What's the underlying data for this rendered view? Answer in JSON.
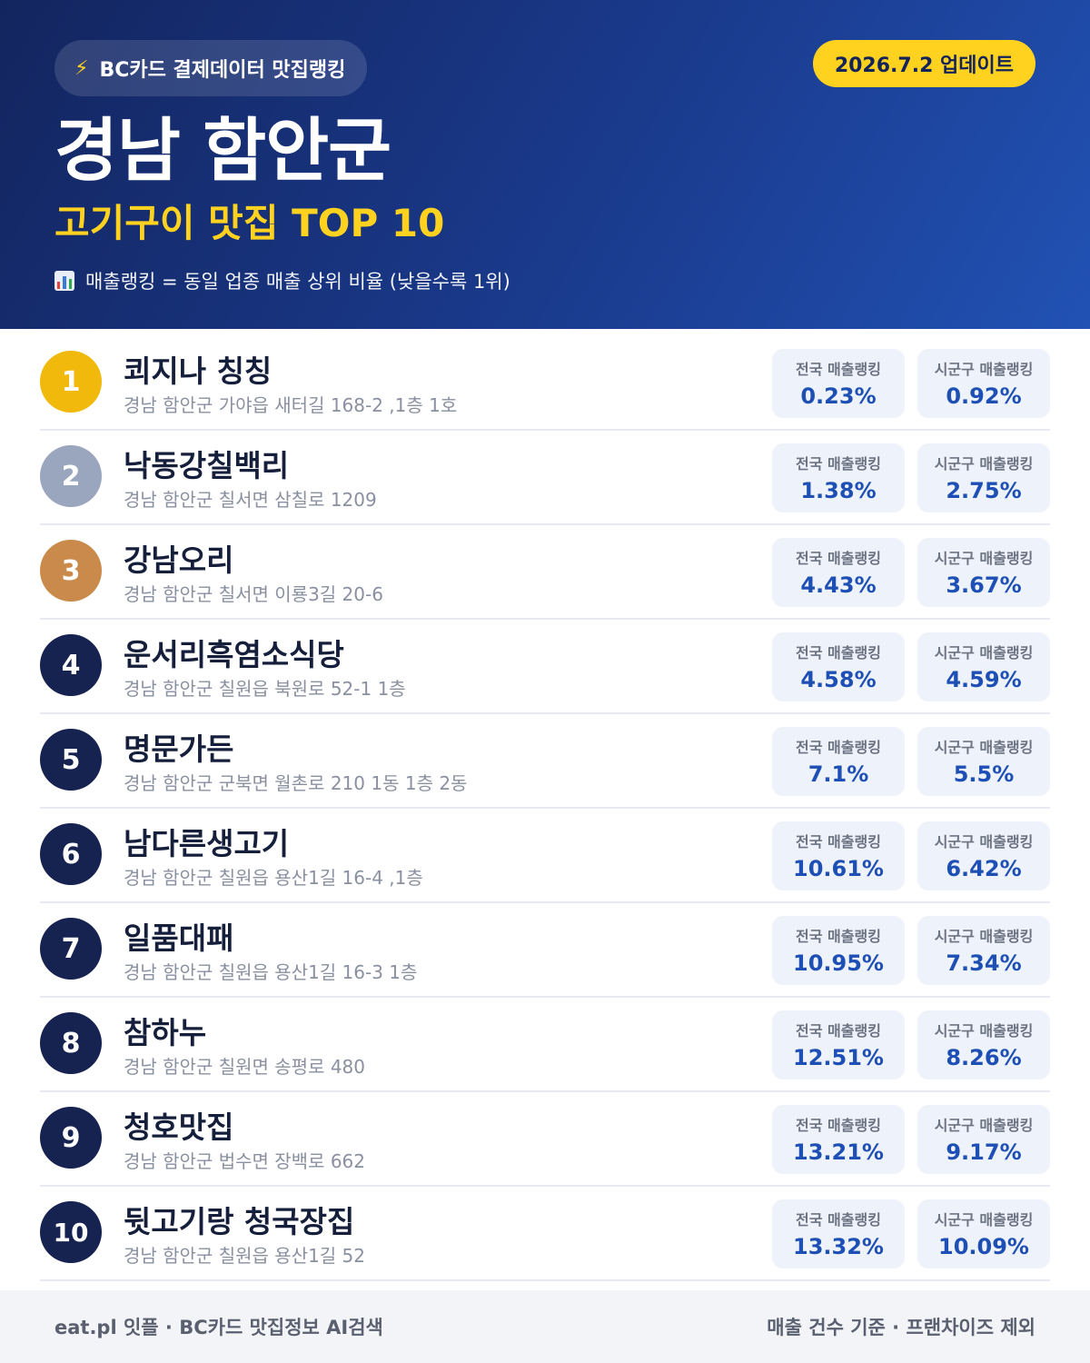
{
  "header": {
    "pill_text": "BC카드 결제데이터 맛집랭킹",
    "update_text": "2026.7.2 업데이트",
    "region": "경남 함안군",
    "subtitle": "고기구이 맛집 TOP 10",
    "legend": "매출랭킹 = 동일 업종 매출 상위 비율 (낮을수록 1위)"
  },
  "labels": {
    "national": "전국 매출랭킹",
    "local": "시군구 매출랭킹"
  },
  "colors": {
    "gold": "#f0b90b",
    "silver": "#9aa6bd",
    "bronze": "#c98a4b",
    "navy": "#16224f",
    "accent_yellow": "#ffd21f",
    "value_blue": "#1e4fb4"
  },
  "restaurants": [
    {
      "rank": "1",
      "name": "쾨지나 칭칭",
      "address": "경남 함안군 가야읍 새터길 168-2 ,1층 1호",
      "national": "0.23%",
      "local": "0.92%"
    },
    {
      "rank": "2",
      "name": "낙동강칠백리",
      "address": "경남 함안군 칠서면 삼칠로 1209",
      "national": "1.38%",
      "local": "2.75%"
    },
    {
      "rank": "3",
      "name": "강남오리",
      "address": "경남 함안군 칠서면 이룡3길 20-6",
      "national": "4.43%",
      "local": "3.67%"
    },
    {
      "rank": "4",
      "name": "운서리흑염소식당",
      "address": "경남 함안군 칠원읍 북원로 52-1 1층",
      "national": "4.58%",
      "local": "4.59%"
    },
    {
      "rank": "5",
      "name": "명문가든",
      "address": "경남 함안군 군북면 월촌로 210 1동 1층 2동",
      "national": "7.1%",
      "local": "5.5%"
    },
    {
      "rank": "6",
      "name": "남다른생고기",
      "address": "경남 함안군 칠원읍 용산1길 16-4 ,1층",
      "national": "10.61%",
      "local": "6.42%"
    },
    {
      "rank": "7",
      "name": "일품대패",
      "address": "경남 함안군 칠원읍 용산1길 16-3 1층",
      "national": "10.95%",
      "local": "7.34%"
    },
    {
      "rank": "8",
      "name": "참하누",
      "address": "경남 함안군 칠원면 송평로 480",
      "national": "12.51%",
      "local": "8.26%"
    },
    {
      "rank": "9",
      "name": "청호맛집",
      "address": "경남 함안군 법수면 장백로 662",
      "national": "13.21%",
      "local": "9.17%"
    },
    {
      "rank": "10",
      "name": "뒷고기랑 청국장집",
      "address": "경남 함안군 칠원읍 용산1길 52",
      "national": "13.32%",
      "local": "10.09%"
    }
  ],
  "footer": {
    "left": "eat.pl 잇플 · BC카드 맛집정보 AI검색",
    "right": "매출 건수 기준 · 프랜차이즈 제외"
  }
}
